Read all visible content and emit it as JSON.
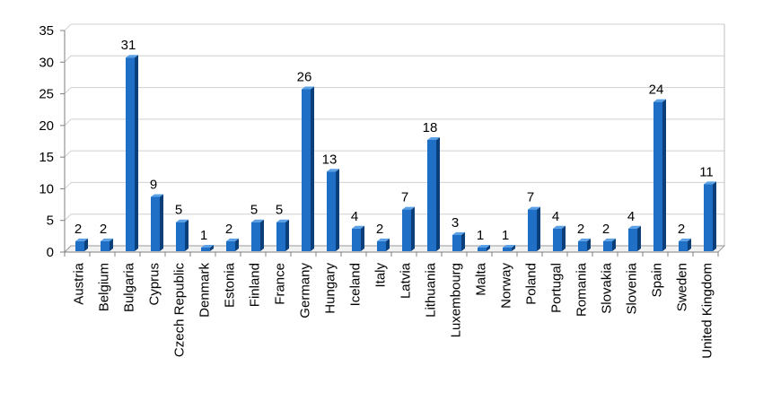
{
  "chart_data": {
    "type": "bar",
    "title": "",
    "xlabel": "",
    "ylabel": "",
    "ylim": [
      0,
      35
    ],
    "yticks": [
      0,
      5,
      10,
      15,
      20,
      25,
      30,
      35
    ],
    "grid": true,
    "legend": "none",
    "bar_color": "#1f6fc6",
    "bar_dark": "#0b3f7a",
    "bar_light": "#5aa0e6",
    "categories": [
      "Austria",
      "Belgium",
      "Bulgaria",
      "Cyprus",
      "Czech Republic",
      "Denmark",
      "Estonia",
      "Finland",
      "France",
      "Germany",
      "Hungary",
      "Iceland",
      "Italy",
      "Latvia",
      "Lithuania",
      "Luxembourg",
      "Malta",
      "Norway",
      "Poland",
      "Portugal",
      "Romania",
      "Slovakia",
      "Slovenia",
      "Spain",
      "Sweden",
      "United Kingdom"
    ],
    "values": [
      2,
      2,
      31,
      9,
      5,
      1,
      2,
      5,
      5,
      26,
      13,
      4,
      2,
      7,
      18,
      3,
      1,
      1,
      7,
      4,
      2,
      2,
      4,
      24,
      2,
      11
    ]
  }
}
